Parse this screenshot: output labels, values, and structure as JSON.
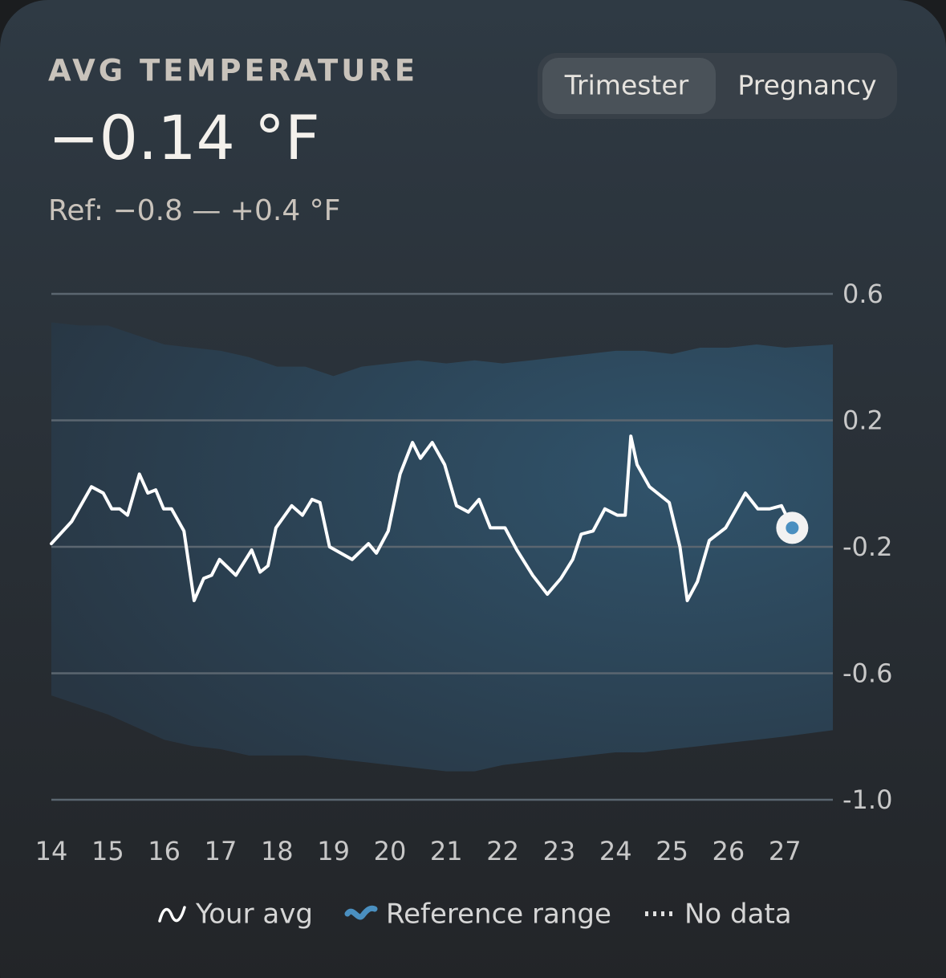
{
  "chart_data": {
    "type": "line",
    "title": "AVG TEMPERATURE",
    "current_value": "−0.14 °F",
    "subtitle": "Ref: −0.8 — +0.4 °F",
    "toggle": {
      "options": [
        "Trimester",
        "Pregnancy"
      ],
      "selected": 0
    },
    "xlim": [
      14,
      27.85
    ],
    "xticks": [
      14,
      15,
      16,
      17,
      18,
      19,
      20,
      21,
      22,
      23,
      24,
      25,
      26,
      27
    ],
    "ylim": [
      -1,
      0.6
    ],
    "yticks": [
      0.6,
      0.2,
      -0.2,
      -0.6,
      {
        "value": -1,
        "label": "-1.0"
      }
    ],
    "grid": true,
    "series": [
      {
        "name": "Your avg",
        "color": "#ffffff",
        "x": [
          14,
          14.36,
          14.71,
          14.92,
          15.07,
          15.21,
          15.35,
          15.56,
          15.71,
          15.85,
          15.99,
          16.13,
          16.35,
          16.53,
          16.7,
          16.84,
          16.98,
          17.27,
          17.55,
          17.7,
          17.84,
          17.98,
          18.26,
          18.45,
          18.62,
          18.76,
          18.93,
          19.33,
          19.62,
          19.76,
          19.97,
          20.18,
          20.4,
          20.54,
          20.75,
          20.97,
          21.18,
          21.39,
          21.58,
          21.78,
          22.04,
          22.25,
          22.53,
          22.79,
          23.03,
          23.24,
          23.39,
          23.6,
          23.81,
          24.03,
          24.17,
          24.27,
          24.38,
          24.6,
          24.95,
          25.14,
          25.27,
          25.45,
          25.66,
          25.95,
          26.3,
          26.52,
          26.73,
          26.94,
          27.13
        ],
        "values": [
          -0.19,
          -0.12,
          -0.01,
          -0.03,
          -0.08,
          -0.08,
          -0.1,
          0.03,
          -0.03,
          -0.02,
          -0.08,
          -0.08,
          -0.15,
          -0.37,
          -0.3,
          -0.29,
          -0.24,
          -0.29,
          -0.21,
          -0.28,
          -0.26,
          -0.14,
          -0.07,
          -0.1,
          -0.05,
          -0.06,
          -0.2,
          -0.24,
          -0.19,
          -0.22,
          -0.15,
          0.03,
          0.13,
          0.08,
          0.13,
          0.06,
          -0.07,
          -0.09,
          -0.05,
          -0.14,
          -0.14,
          -0.21,
          -0.29,
          -0.35,
          -0.3,
          -0.24,
          -0.16,
          -0.15,
          -0.08,
          -0.1,
          -0.1,
          0.15,
          0.06,
          -0.01,
          -0.06,
          -0.2,
          -0.37,
          -0.31,
          -0.18,
          -0.14,
          -0.03,
          -0.08,
          -0.08,
          -0.07,
          -0.14
        ]
      }
    ],
    "band": {
      "name": "Reference range",
      "color": "#4a8fc0",
      "x": [
        14,
        14.5,
        15,
        15.5,
        16,
        16.5,
        17,
        17.5,
        18,
        18.5,
        19,
        19.5,
        20,
        20.5,
        21,
        21.5,
        22,
        22.5,
        23,
        23.5,
        24,
        24.5,
        25,
        25.5,
        26,
        26.5,
        27,
        27.85
      ],
      "upper": [
        0.51,
        0.5,
        0.5,
        0.47,
        0.44,
        0.43,
        0.42,
        0.4,
        0.37,
        0.37,
        0.34,
        0.37,
        0.38,
        0.39,
        0.38,
        0.39,
        0.38,
        0.39,
        0.4,
        0.41,
        0.42,
        0.42,
        0.41,
        0.43,
        0.43,
        0.44,
        0.43,
        0.44
      ],
      "lower": [
        -0.67,
        -0.7,
        -0.73,
        -0.77,
        -0.81,
        -0.83,
        -0.84,
        -0.86,
        -0.86,
        -0.86,
        -0.87,
        -0.88,
        -0.89,
        -0.9,
        -0.91,
        -0.91,
        -0.89,
        -0.88,
        -0.87,
        -0.86,
        -0.85,
        -0.85,
        -0.84,
        -0.83,
        -0.82,
        -0.81,
        -0.8,
        -0.78
      ]
    },
    "no_data_label": "No data"
  }
}
